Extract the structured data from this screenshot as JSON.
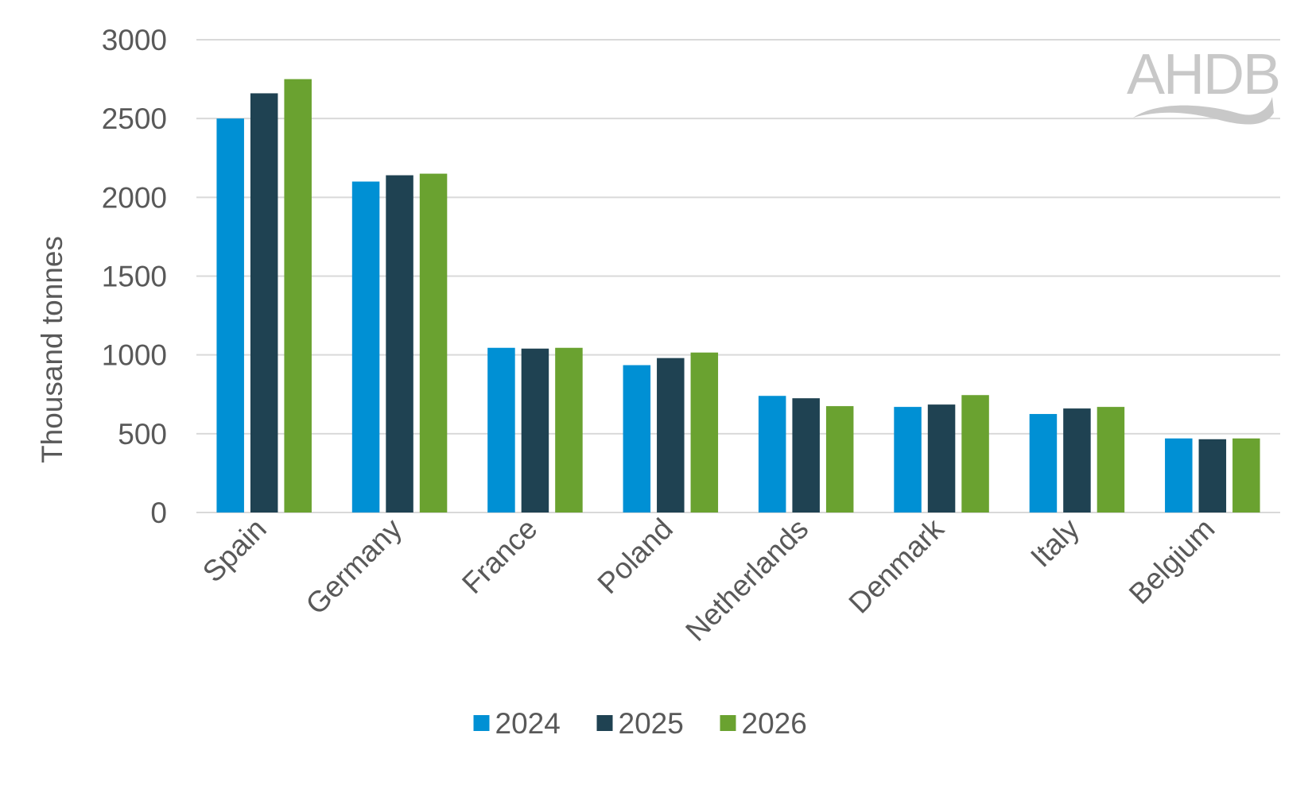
{
  "chart_data": {
    "type": "bar",
    "title": "",
    "xlabel": "",
    "ylabel": "Thousand tonnes",
    "ylim": [
      0,
      3000
    ],
    "yticks": [
      0,
      500,
      1000,
      1500,
      2000,
      2500,
      3000
    ],
    "grid": true,
    "legend_position": "bottom-center",
    "categories": [
      "Spain",
      "Germany",
      "France",
      "Poland",
      "Netherlands",
      "Denmark",
      "Italy",
      "Belgium"
    ],
    "series": [
      {
        "name": "2024",
        "color": "#0090d4",
        "values": [
          2500,
          2100,
          1045,
          935,
          740,
          670,
          625,
          470
        ]
      },
      {
        "name": "2025",
        "color": "#1f4252",
        "values": [
          2660,
          2140,
          1040,
          980,
          725,
          685,
          660,
          465
        ]
      },
      {
        "name": "2026",
        "color": "#6aa230",
        "values": [
          2750,
          2150,
          1045,
          1015,
          675,
          745,
          670,
          470
        ]
      }
    ]
  },
  "logo": {
    "text": "AHDB",
    "color": "#c8c8c8"
  }
}
